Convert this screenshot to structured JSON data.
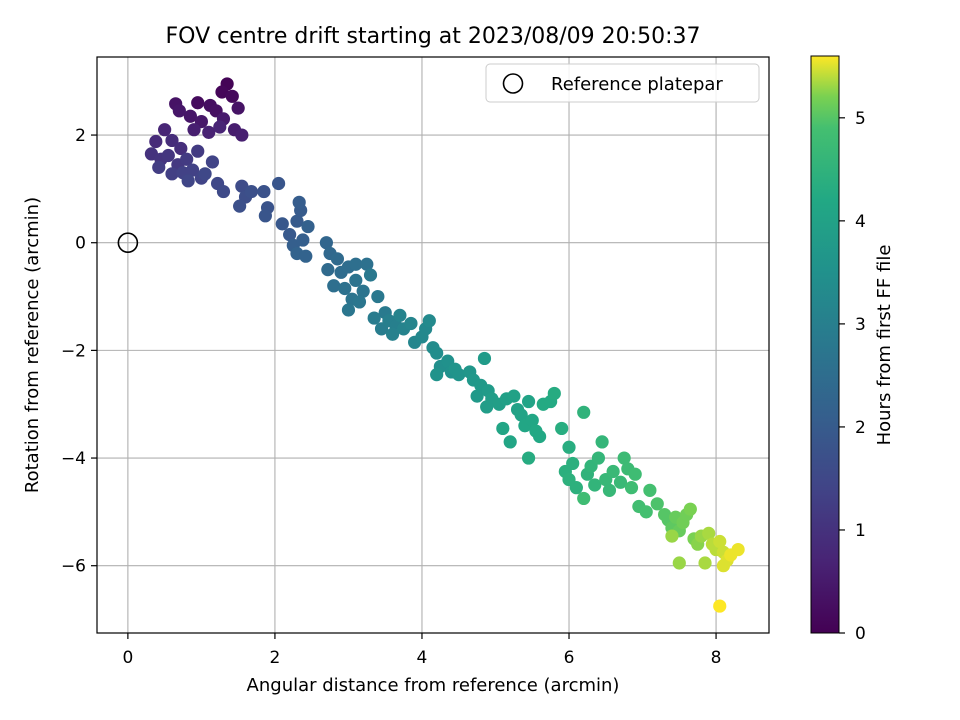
{
  "chart_data": {
    "type": "scatter",
    "title": "FOV centre drift starting at 2023/08/09 20:50:37",
    "xlabel": "Angular distance from reference (arcmin)",
    "ylabel": "Rotation from reference (arcmin)",
    "xlim": [
      -0.42,
      8.72
    ],
    "ylim": [
      -7.25,
      3.45
    ],
    "xticks": [
      0,
      2,
      4,
      6,
      8
    ],
    "yticks": [
      -6,
      -4,
      -2,
      0,
      2
    ],
    "grid": true,
    "legend": {
      "placement": "top-right",
      "entries": [
        "Reference platepar"
      ]
    },
    "reference_point": {
      "x": 0,
      "y": 0,
      "label": "Reference platepar"
    },
    "colorbar": {
      "label": "Hours from first FF file",
      "colormap": "viridis",
      "range": [
        0,
        5.6
      ],
      "ticks": [
        0,
        1,
        2,
        3,
        4,
        5
      ]
    },
    "series": [
      {
        "marker": "circle",
        "color_by": "Hours from first FF file",
        "points": [
          {
            "x": 1.35,
            "y": 2.95,
            "c": 0.05
          },
          {
            "x": 1.28,
            "y": 2.8,
            "c": 0.1
          },
          {
            "x": 1.42,
            "y": 2.72,
            "c": 0.15
          },
          {
            "x": 0.95,
            "y": 2.6,
            "c": 0.2
          },
          {
            "x": 1.12,
            "y": 2.55,
            "c": 0.25
          },
          {
            "x": 1.2,
            "y": 2.45,
            "c": 0.3
          },
          {
            "x": 1.5,
            "y": 2.5,
            "c": 0.35
          },
          {
            "x": 0.85,
            "y": 2.35,
            "c": 0.4
          },
          {
            "x": 1.0,
            "y": 2.25,
            "c": 0.45
          },
          {
            "x": 1.3,
            "y": 2.3,
            "c": 0.5
          },
          {
            "x": 1.45,
            "y": 2.1,
            "c": 0.55
          },
          {
            "x": 1.55,
            "y": 2.0,
            "c": 0.6
          },
          {
            "x": 0.65,
            "y": 2.58,
            "c": 0.35
          },
          {
            "x": 0.7,
            "y": 2.45,
            "c": 0.42
          },
          {
            "x": 0.9,
            "y": 2.1,
            "c": 0.6
          },
          {
            "x": 1.1,
            "y": 2.05,
            "c": 0.65
          },
          {
            "x": 1.25,
            "y": 2.15,
            "c": 0.7
          },
          {
            "x": 0.5,
            "y": 2.1,
            "c": 0.75
          },
          {
            "x": 0.38,
            "y": 1.88,
            "c": 0.85
          },
          {
            "x": 0.6,
            "y": 1.9,
            "c": 0.9
          },
          {
            "x": 0.72,
            "y": 1.75,
            "c": 0.95
          },
          {
            "x": 0.32,
            "y": 1.65,
            "c": 1.0
          },
          {
            "x": 0.45,
            "y": 1.55,
            "c": 1.05
          },
          {
            "x": 0.55,
            "y": 1.62,
            "c": 1.1
          },
          {
            "x": 0.68,
            "y": 1.45,
            "c": 1.15
          },
          {
            "x": 0.8,
            "y": 1.55,
            "c": 1.2
          },
          {
            "x": 0.95,
            "y": 1.7,
            "c": 1.2
          },
          {
            "x": 0.42,
            "y": 1.4,
            "c": 1.25
          },
          {
            "x": 0.6,
            "y": 1.28,
            "c": 1.3
          },
          {
            "x": 0.75,
            "y": 1.3,
            "c": 1.35
          },
          {
            "x": 0.88,
            "y": 1.35,
            "c": 1.35
          },
          {
            "x": 1.0,
            "y": 1.2,
            "c": 1.4
          },
          {
            "x": 1.15,
            "y": 1.5,
            "c": 1.4
          },
          {
            "x": 0.82,
            "y": 1.15,
            "c": 1.45
          },
          {
            "x": 1.05,
            "y": 1.28,
            "c": 1.5
          },
          {
            "x": 1.22,
            "y": 1.1,
            "c": 1.5
          },
          {
            "x": 1.3,
            "y": 0.95,
            "c": 1.55
          },
          {
            "x": 1.55,
            "y": 1.05,
            "c": 1.6
          },
          {
            "x": 1.6,
            "y": 0.85,
            "c": 1.65
          },
          {
            "x": 1.52,
            "y": 0.68,
            "c": 1.7
          },
          {
            "x": 1.68,
            "y": 0.95,
            "c": 1.7
          },
          {
            "x": 1.85,
            "y": 0.95,
            "c": 1.75
          },
          {
            "x": 1.9,
            "y": 0.65,
            "c": 1.8
          },
          {
            "x": 1.87,
            "y": 0.5,
            "c": 1.85
          },
          {
            "x": 2.05,
            "y": 1.1,
            "c": 1.85
          },
          {
            "x": 2.1,
            "y": 0.35,
            "c": 1.9
          },
          {
            "x": 2.2,
            "y": 0.15,
            "c": 1.95
          },
          {
            "x": 2.3,
            "y": 0.4,
            "c": 2.0
          },
          {
            "x": 2.35,
            "y": 0.6,
            "c": 2.0
          },
          {
            "x": 2.33,
            "y": 0.75,
            "c": 2.05
          },
          {
            "x": 2.25,
            "y": -0.05,
            "c": 2.1
          },
          {
            "x": 2.38,
            "y": 0.05,
            "c": 2.1
          },
          {
            "x": 2.45,
            "y": 0.3,
            "c": 2.15
          },
          {
            "x": 2.3,
            "y": -0.2,
            "c": 2.2
          },
          {
            "x": 2.42,
            "y": -0.25,
            "c": 2.2
          },
          {
            "x": 2.7,
            "y": 0.0,
            "c": 2.3
          },
          {
            "x": 2.75,
            "y": -0.2,
            "c": 2.35
          },
          {
            "x": 2.85,
            "y": -0.3,
            "c": 2.4
          },
          {
            "x": 2.72,
            "y": -0.5,
            "c": 2.4
          },
          {
            "x": 2.9,
            "y": -0.55,
            "c": 2.45
          },
          {
            "x": 3.0,
            "y": -0.45,
            "c": 2.5
          },
          {
            "x": 3.1,
            "y": -0.4,
            "c": 2.55
          },
          {
            "x": 3.25,
            "y": -0.4,
            "c": 2.6
          },
          {
            "x": 2.8,
            "y": -0.8,
            "c": 2.55
          },
          {
            "x": 2.95,
            "y": -0.85,
            "c": 2.6
          },
          {
            "x": 3.1,
            "y": -0.7,
            "c": 2.65
          },
          {
            "x": 3.2,
            "y": -0.9,
            "c": 2.7
          },
          {
            "x": 3.05,
            "y": -1.05,
            "c": 2.7
          },
          {
            "x": 3.15,
            "y": -1.1,
            "c": 2.75
          },
          {
            "x": 3.0,
            "y": -1.25,
            "c": 2.75
          },
          {
            "x": 3.3,
            "y": -0.6,
            "c": 2.8
          },
          {
            "x": 3.4,
            "y": -1.0,
            "c": 2.8
          },
          {
            "x": 3.5,
            "y": -1.3,
            "c": 2.85
          },
          {
            "x": 3.35,
            "y": -1.4,
            "c": 2.9
          },
          {
            "x": 3.45,
            "y": -1.6,
            "c": 2.95
          },
          {
            "x": 3.55,
            "y": -1.45,
            "c": 3.0
          },
          {
            "x": 3.65,
            "y": -1.55,
            "c": 3.0
          },
          {
            "x": 3.6,
            "y": -1.7,
            "c": 3.05
          },
          {
            "x": 3.7,
            "y": -1.35,
            "c": 3.1
          },
          {
            "x": 3.75,
            "y": -1.6,
            "c": 3.1
          },
          {
            "x": 3.85,
            "y": -1.5,
            "c": 3.15
          },
          {
            "x": 3.9,
            "y": -1.85,
            "c": 3.2
          },
          {
            "x": 4.0,
            "y": -1.75,
            "c": 3.25
          },
          {
            "x": 4.05,
            "y": -1.6,
            "c": 3.25
          },
          {
            "x": 4.1,
            "y": -1.45,
            "c": 3.3
          },
          {
            "x": 4.15,
            "y": -1.95,
            "c": 3.35
          },
          {
            "x": 4.2,
            "y": -2.05,
            "c": 3.4
          },
          {
            "x": 4.25,
            "y": -2.3,
            "c": 3.45
          },
          {
            "x": 4.35,
            "y": -2.2,
            "c": 3.5
          },
          {
            "x": 4.4,
            "y": -2.4,
            "c": 3.5
          },
          {
            "x": 4.2,
            "y": -2.45,
            "c": 3.55
          },
          {
            "x": 4.45,
            "y": -2.35,
            "c": 3.6
          },
          {
            "x": 4.5,
            "y": -2.45,
            "c": 3.6
          },
          {
            "x": 4.65,
            "y": -2.4,
            "c": 3.65
          },
          {
            "x": 4.7,
            "y": -2.55,
            "c": 3.7
          },
          {
            "x": 4.8,
            "y": -2.65,
            "c": 3.75
          },
          {
            "x": 4.75,
            "y": -2.85,
            "c": 3.75
          },
          {
            "x": 4.85,
            "y": -2.15,
            "c": 3.8
          },
          {
            "x": 4.9,
            "y": -2.75,
            "c": 3.8
          },
          {
            "x": 4.95,
            "y": -2.9,
            "c": 3.85
          },
          {
            "x": 4.88,
            "y": -3.05,
            "c": 3.85
          },
          {
            "x": 5.05,
            "y": -3.0,
            "c": 3.9
          },
          {
            "x": 5.15,
            "y": -2.9,
            "c": 3.95
          },
          {
            "x": 5.25,
            "y": -2.85,
            "c": 4.0
          },
          {
            "x": 5.3,
            "y": -3.1,
            "c": 4.0
          },
          {
            "x": 5.35,
            "y": -3.2,
            "c": 4.05
          },
          {
            "x": 5.45,
            "y": -2.95,
            "c": 4.05
          },
          {
            "x": 5.1,
            "y": -3.45,
            "c": 4.1
          },
          {
            "x": 5.2,
            "y": -3.7,
            "c": 4.1
          },
          {
            "x": 5.4,
            "y": -3.4,
            "c": 4.15
          },
          {
            "x": 5.5,
            "y": -3.3,
            "c": 4.15
          },
          {
            "x": 5.55,
            "y": -3.5,
            "c": 4.2
          },
          {
            "x": 5.6,
            "y": -3.6,
            "c": 4.2
          },
          {
            "x": 5.65,
            "y": -3.0,
            "c": 4.25
          },
          {
            "x": 5.75,
            "y": -2.95,
            "c": 4.25
          },
          {
            "x": 5.8,
            "y": -2.8,
            "c": 4.3
          },
          {
            "x": 5.45,
            "y": -4.0,
            "c": 4.3
          },
          {
            "x": 5.9,
            "y": -3.45,
            "c": 4.35
          },
          {
            "x": 6.0,
            "y": -3.8,
            "c": 4.35
          },
          {
            "x": 6.05,
            "y": -4.1,
            "c": 4.4
          },
          {
            "x": 5.95,
            "y": -4.25,
            "c": 4.4
          },
          {
            "x": 6.1,
            "y": -4.55,
            "c": 4.45
          },
          {
            "x": 6.0,
            "y": -4.4,
            "c": 4.45
          },
          {
            "x": 6.2,
            "y": -3.15,
            "c": 4.5
          },
          {
            "x": 6.25,
            "y": -4.3,
            "c": 4.5
          },
          {
            "x": 6.3,
            "y": -4.15,
            "c": 4.55
          },
          {
            "x": 6.35,
            "y": -4.5,
            "c": 4.55
          },
          {
            "x": 6.4,
            "y": -4.0,
            "c": 4.6
          },
          {
            "x": 6.45,
            "y": -3.7,
            "c": 4.6
          },
          {
            "x": 6.5,
            "y": -4.4,
            "c": 4.65
          },
          {
            "x": 6.55,
            "y": -4.6,
            "c": 4.65
          },
          {
            "x": 6.6,
            "y": -4.25,
            "c": 4.7
          },
          {
            "x": 6.7,
            "y": -4.45,
            "c": 4.7
          },
          {
            "x": 6.75,
            "y": -4.0,
            "c": 4.75
          },
          {
            "x": 6.8,
            "y": -4.2,
            "c": 4.75
          },
          {
            "x": 6.85,
            "y": -4.55,
            "c": 4.8
          },
          {
            "x": 6.9,
            "y": -4.3,
            "c": 4.8
          },
          {
            "x": 6.2,
            "y": -4.75,
            "c": 4.8
          },
          {
            "x": 6.95,
            "y": -4.9,
            "c": 4.85
          },
          {
            "x": 7.05,
            "y": -5.0,
            "c": 4.9
          },
          {
            "x": 7.1,
            "y": -4.6,
            "c": 4.9
          },
          {
            "x": 7.2,
            "y": -4.85,
            "c": 4.95
          },
          {
            "x": 7.3,
            "y": -5.05,
            "c": 5.0
          },
          {
            "x": 7.35,
            "y": -5.15,
            "c": 5.0
          },
          {
            "x": 7.4,
            "y": -5.3,
            "c": 5.05
          },
          {
            "x": 7.45,
            "y": -5.1,
            "c": 5.1
          },
          {
            "x": 7.5,
            "y": -5.35,
            "c": 5.1
          },
          {
            "x": 7.55,
            "y": -5.2,
            "c": 5.15
          },
          {
            "x": 7.6,
            "y": -5.05,
            "c": 5.15
          },
          {
            "x": 7.65,
            "y": -4.95,
            "c": 5.2
          },
          {
            "x": 7.7,
            "y": -5.5,
            "c": 5.2
          },
          {
            "x": 7.75,
            "y": -5.6,
            "c": 5.25
          },
          {
            "x": 7.8,
            "y": -5.45,
            "c": 5.3
          },
          {
            "x": 7.5,
            "y": -5.95,
            "c": 5.3
          },
          {
            "x": 7.4,
            "y": -5.45,
            "c": 5.3
          },
          {
            "x": 7.85,
            "y": -5.95,
            "c": 5.35
          },
          {
            "x": 7.9,
            "y": -5.4,
            "c": 5.35
          },
          {
            "x": 7.95,
            "y": -5.6,
            "c": 5.4
          },
          {
            "x": 8.0,
            "y": -5.7,
            "c": 5.4
          },
          {
            "x": 8.05,
            "y": -5.55,
            "c": 5.45
          },
          {
            "x": 8.1,
            "y": -5.75,
            "c": 5.45
          },
          {
            "x": 8.15,
            "y": -5.9,
            "c": 5.5
          },
          {
            "x": 8.1,
            "y": -6.0,
            "c": 5.5
          },
          {
            "x": 8.2,
            "y": -5.8,
            "c": 5.55
          },
          {
            "x": 8.3,
            "y": -5.7,
            "c": 5.55
          },
          {
            "x": 8.05,
            "y": -6.75,
            "c": 5.6
          }
        ]
      }
    ]
  }
}
